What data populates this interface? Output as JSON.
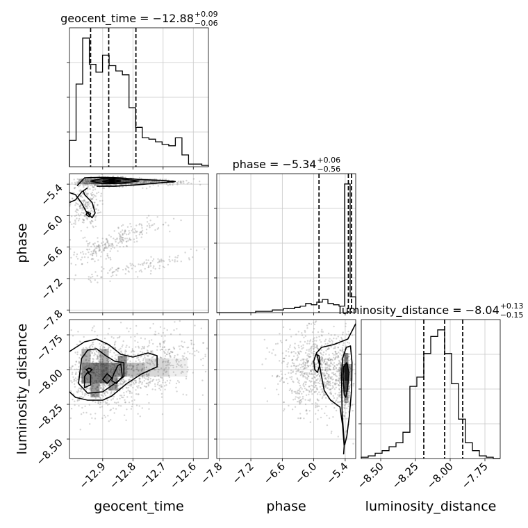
{
  "chart_data": {
    "type": "corner",
    "parameters": [
      {
        "label": "geocent_time",
        "title": "geocent_time = −12.88",
        "title_upper": "+0.09",
        "title_lower": "−0.06",
        "range": [
          -13.01,
          -12.55
        ],
        "ticks": [
          -12.9,
          -12.8,
          -12.7,
          -12.6
        ],
        "tick_labels": [
          "−12.9",
          "−12.8",
          "−12.7",
          "−12.6"
        ],
        "quantiles": [
          -12.94,
          -12.88,
          -12.79
        ],
        "hist_counts": [
          0.2,
          0.63,
          0.98,
          0.78,
          0.72,
          0.85,
          0.77,
          0.73,
          0.7,
          0.45,
          0.3,
          0.22,
          0.21,
          0.19,
          0.17,
          0.16,
          0.22,
          0.09,
          0.02,
          0.02,
          0.01
        ]
      },
      {
        "label": "phase",
        "title": "phase = −5.34",
        "title_upper": "+0.06",
        "title_lower": "−0.56",
        "range": [
          -7.85,
          -5.2
        ],
        "ticks": [
          -7.8,
          -7.2,
          -6.6,
          -6.0,
          -5.4
        ],
        "tick_labels": [
          "−7.8",
          "−7.2",
          "−6.6",
          "−6.0",
          "−5.4"
        ],
        "quantiles": [
          -5.9,
          -5.34,
          -5.28
        ],
        "hist_counts": [
          0.0,
          0.0,
          0.0,
          0.0,
          0.0,
          0.0,
          0.0,
          0.01,
          0.01,
          0.01,
          0.02,
          0.02,
          0.03,
          0.03,
          0.04,
          0.05,
          0.07,
          0.06,
          0.08,
          0.1,
          0.07,
          0.06,
          0.05,
          0.98,
          0.12
        ]
      },
      {
        "label": "luminosity_distance",
        "title": "luminosity_distance = −8.04",
        "title_upper": "+0.13",
        "title_lower": "−0.15",
        "range": [
          -8.64,
          -7.64
        ],
        "ticks": [
          -8.5,
          -8.25,
          -8.0,
          -7.75
        ],
        "tick_labels": [
          "−8.50",
          "−8.25",
          "−8.00",
          "−7.75"
        ],
        "quantiles": [
          -8.19,
          -8.04,
          -7.91
        ],
        "hist_counts": [
          0.01,
          0.02,
          0.04,
          0.06,
          0.09,
          0.12,
          0.2,
          0.55,
          0.62,
          0.8,
          0.93,
          0.98,
          0.8,
          0.57,
          0.3,
          0.12,
          0.06,
          0.02,
          0.01,
          0.0
        ]
      }
    ]
  }
}
